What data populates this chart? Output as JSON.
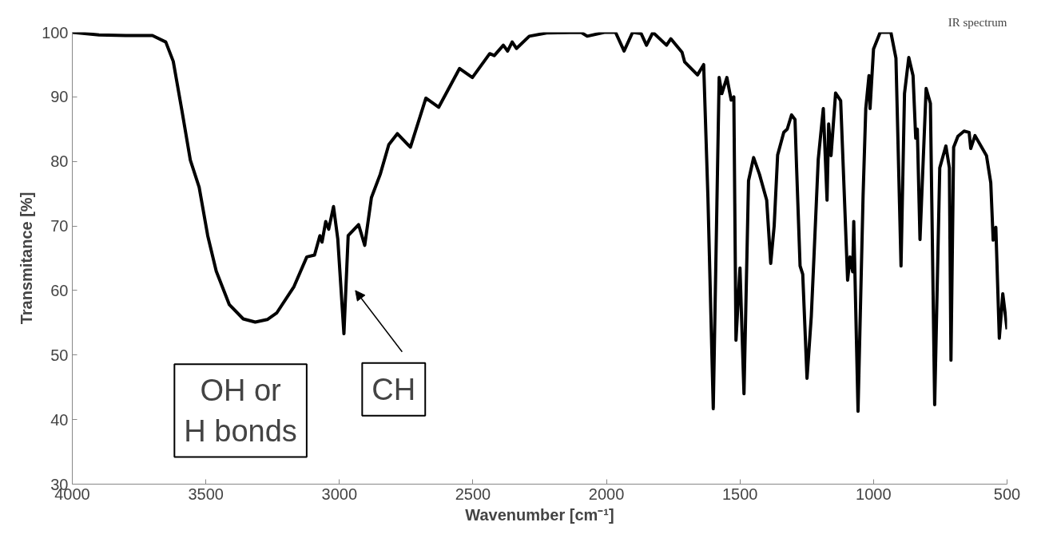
{
  "chart_data": {
    "type": "line",
    "title": "IR spectrum",
    "xlabel": "Wavenumber [cm⁻¹]",
    "ylabel": "Transmitance [%]",
    "xlim": [
      4000,
      500
    ],
    "xticks": [
      4000,
      3500,
      3000,
      2500,
      2000,
      1500,
      1000,
      500
    ],
    "ylim": [
      30,
      100
    ],
    "yticks": [
      30,
      40,
      50,
      60,
      70,
      80,
      90,
      100
    ],
    "grid": false,
    "marker": "none",
    "line_style": "solid",
    "annotations": [
      {
        "text": "OH or\nH bonds",
        "x": 3370,
        "y": 55
      },
      {
        "text": "CH",
        "x": 2960,
        "y": 60
      }
    ],
    "series": [
      {
        "color": "#000000",
        "x": [
          4000,
          3900,
          3800,
          3700,
          3650,
          3622,
          3590,
          3558,
          3525,
          3493,
          3461,
          3412,
          3360,
          3315,
          3270,
          3235,
          3170,
          3122,
          3093,
          3073,
          3065,
          3051,
          3040,
          3022,
          3006,
          2983,
          2967,
          2928,
          2905,
          2880,
          2847,
          2815,
          2783,
          2734,
          2676,
          2628,
          2550,
          2502,
          2437,
          2420,
          2386,
          2370,
          2353,
          2337,
          2289,
          2224,
          2095,
          2072,
          2008,
          1966,
          1934,
          1902,
          1870,
          1850,
          1826,
          1775,
          1759,
          1717,
          1707,
          1659,
          1636,
          1620,
          1600,
          1578,
          1568,
          1549,
          1533,
          1523,
          1515,
          1500,
          1485,
          1468,
          1449,
          1427,
          1400,
          1385,
          1372,
          1359,
          1336,
          1323,
          1307,
          1294,
          1288,
          1275,
          1265,
          1249,
          1233,
          1223,
          1207,
          1188,
          1174,
          1168,
          1159,
          1142,
          1123,
          1097,
          1088,
          1078,
          1074,
          1058,
          1039,
          1029,
          1017,
          1013,
          1000,
          975,
          935,
          916,
          897,
          884,
          868,
          852,
          842,
          836,
          826,
          803,
          787,
          771,
          752,
          729,
          716,
          710,
          700,
          684,
          661,
          642,
          636,
          620,
          577,
          561,
          552,
          542,
          529,
          516,
          500
        ],
        "values": [
          100,
          99.6,
          99.5,
          99.5,
          98.5,
          95.5,
          88,
          80.2,
          76,
          68.5,
          63,
          57.8,
          55.6,
          55.1,
          55.5,
          56.5,
          60.6,
          65.2,
          65.5,
          68.5,
          67.5,
          70.7,
          69.5,
          73,
          68,
          53.3,
          68.5,
          70.2,
          67,
          74.4,
          78,
          82.6,
          84.3,
          82.2,
          89.8,
          88.4,
          94.4,
          93,
          96.7,
          96.4,
          98,
          97.1,
          98.5,
          97.5,
          99.4,
          99.9,
          100,
          99.4,
          100,
          100,
          97.1,
          100,
          99.8,
          98,
          100,
          98,
          99,
          96.9,
          95.4,
          93.4,
          95,
          74.4,
          41.7,
          93,
          90.5,
          93,
          89.5,
          90,
          52.3,
          63.5,
          44,
          77,
          80.6,
          78,
          74,
          64.2,
          70,
          81,
          84.5,
          85,
          87.2,
          86.5,
          79,
          63.8,
          62.5,
          46.4,
          56,
          65.2,
          80.3,
          88.2,
          74,
          85.8,
          80.9,
          90.6,
          89.4,
          61.6,
          65.2,
          62.9,
          70.7,
          41.3,
          74.8,
          88.2,
          93.3,
          88.2,
          97.4,
          100,
          100,
          96,
          63.8,
          90.5,
          96.1,
          93.3,
          83.6,
          85,
          67.9,
          91.3,
          89,
          42.3,
          79,
          82.4,
          79,
          49.2,
          82.2,
          83.9,
          84.7,
          84.5,
          82,
          84,
          80.9,
          76.7,
          67.8,
          69.8,
          52.6,
          59.5,
          54
        ]
      }
    ]
  }
}
